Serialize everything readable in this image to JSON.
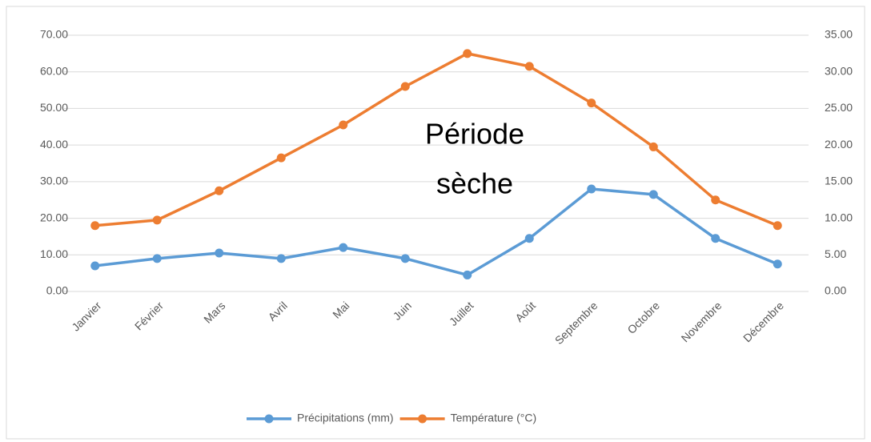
{
  "chart_data": {
    "type": "line",
    "categories": [
      "Janvier",
      "Février",
      "Mars",
      "Avril",
      "Mai",
      "Juin",
      "Juillet",
      "Août",
      "Septembre",
      "Octobre",
      "Novembre",
      "Décembre"
    ],
    "series": [
      {
        "name": "Précipitations (mm)",
        "color": "#5b9bd5",
        "values": [
          7,
          9,
          10.5,
          9,
          12,
          9,
          4.5,
          14.5,
          28,
          26.5,
          14.5,
          7.5
        ]
      },
      {
        "name": "Température (°C)",
        "color": "#ed7d31",
        "axis": "y2",
        "values": [
          9,
          9.75,
          13.75,
          18.25,
          22.75,
          28,
          32.5,
          30.75,
          25.75,
          19.75,
          12.5,
          9
        ]
      }
    ],
    "ylim": [
      0,
      70
    ],
    "yticks": [
      {
        "value": 0,
        "label": "0.00"
      },
      {
        "value": 10,
        "label": "10.00"
      },
      {
        "value": 20,
        "label": "20.00"
      },
      {
        "value": 30,
        "label": "30.00"
      },
      {
        "value": 40,
        "label": "40.00"
      },
      {
        "value": 50,
        "label": "50.00"
      },
      {
        "value": 60,
        "label": "60.00"
      },
      {
        "value": 70,
        "label": "70.00"
      }
    ],
    "y2lim": [
      0,
      35
    ],
    "y2ticks": [
      {
        "value": 0,
        "label": "0.00"
      },
      {
        "value": 5,
        "label": "5.00"
      },
      {
        "value": 10,
        "label": "10.00"
      },
      {
        "value": 15,
        "label": "15.00"
      },
      {
        "value": 20,
        "label": "20.00"
      },
      {
        "value": 25,
        "label": "25.00"
      },
      {
        "value": 30,
        "label": "30.00"
      },
      {
        "value": 35,
        "label": "35.00"
      }
    ],
    "annotation": [
      "Période",
      "sèche"
    ],
    "grid": true,
    "legend": "bottom"
  }
}
